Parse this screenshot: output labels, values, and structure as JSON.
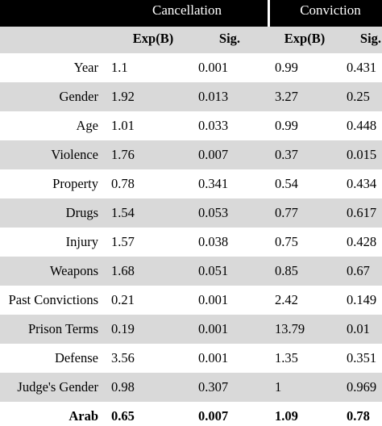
{
  "header": {
    "groups": [
      "Cancellation",
      "Conviction"
    ],
    "columns": [
      "Exp(B)",
      "Sig.",
      "Exp(B)",
      "Sig."
    ]
  },
  "table": {
    "rows": [
      [
        "Year",
        1.1,
        0.001,
        0.99,
        0.431
      ],
      [
        "Gender",
        1.92,
        0.013,
        3.27,
        0.25
      ],
      [
        "Age",
        1.01,
        0.033,
        0.99,
        0.448
      ],
      [
        "Violence",
        1.76,
        0.007,
        0.37,
        0.015
      ],
      [
        "Property",
        0.78,
        0.341,
        0.54,
        0.434
      ],
      [
        "Drugs",
        1.54,
        0.053,
        0.77,
        0.617
      ],
      [
        "Injury",
        1.57,
        0.038,
        0.75,
        0.428
      ],
      [
        "Weapons",
        1.68,
        0.051,
        0.85,
        0.67
      ],
      [
        "Past Convictions",
        0.21,
        0.001,
        2.42,
        0.149
      ],
      [
        "Prison Terms",
        0.19,
        0.001,
        13.79,
        0.01
      ],
      [
        "Defense",
        3.56,
        0.001,
        1.35,
        0.351
      ],
      [
        "Judge's Gender",
        0.98,
        0.307,
        1,
        0.969
      ],
      [
        "Arab",
        0.65,
        0.007,
        1.09,
        0.78
      ]
    ]
  }
}
